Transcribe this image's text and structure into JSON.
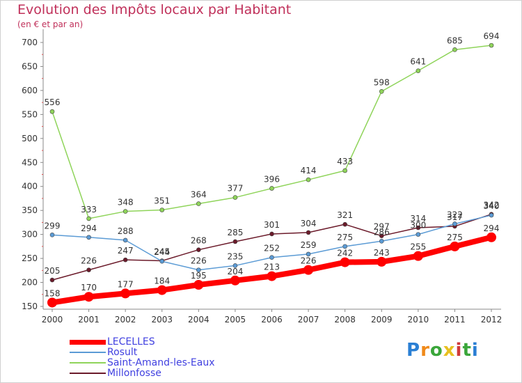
{
  "header": {
    "title": "Evolution des Impôts locaux par Habitant",
    "subtitle": "(en € et par an)"
  },
  "logo": {
    "text": "Proxiti"
  },
  "chart_data": {
    "type": "line",
    "x": [
      "2000",
      "2001",
      "2002",
      "2003",
      "2004",
      "2005",
      "2006",
      "2007",
      "2008",
      "2009",
      "2010",
      "2011",
      "2012"
    ],
    "ylim": [
      150,
      700
    ],
    "yticks": [
      150,
      200,
      250,
      300,
      350,
      400,
      450,
      500,
      550,
      600,
      650,
      700
    ],
    "grid": false,
    "legend_position": "bottom-left",
    "series": [
      {
        "name": "LECELLES",
        "color": "#ff0000",
        "width": 8,
        "values": [
          158,
          170,
          177,
          184,
          195,
          204,
          213,
          226,
          242,
          243,
          255,
          275,
          294
        ]
      },
      {
        "name": "Rosult",
        "color": "#5b9bd5",
        "width": 1.5,
        "values": [
          299,
          294,
          288,
          244,
          226,
          235,
          252,
          259,
          275,
          286,
          300,
          322,
          340
        ]
      },
      {
        "name": "Saint-Amand-les-Eaux",
        "color": "#8fd45a",
        "width": 1.5,
        "values": [
          556,
          333,
          348,
          351,
          364,
          377,
          396,
          414,
          433,
          598,
          641,
          685,
          694
        ]
      },
      {
        "name": "Millonfosse",
        "color": "#6b1a2a",
        "width": 1.5,
        "values": [
          205,
          226,
          247,
          245,
          268,
          285,
          301,
          304,
          321,
          297,
          314,
          317,
          342
        ]
      }
    ]
  }
}
